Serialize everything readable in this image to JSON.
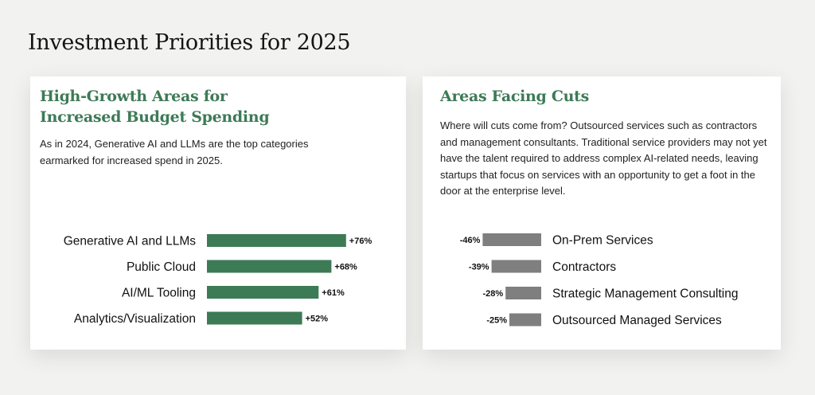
{
  "page": {
    "title": "Investment Priorities for 2025"
  },
  "left_card": {
    "title_line1": "High-Growth Areas for",
    "title_line2": "Increased Budget Spending",
    "description": "As in 2024, Generative AI and LLMs are the top categories earmarked for increased spend in 2025."
  },
  "right_card": {
    "title": "Areas Facing Cuts",
    "description": "Where will cuts come from? Outsourced services such as contractors and management consultants. Traditional service providers may not yet have the talent required to address complex AI-related needs, leaving startups that focus on services with an opportunity to get a foot in the door at the enterprise level."
  },
  "colors": {
    "increase_bar": "#3d7a56",
    "decrease_bar": "#7f7f7f",
    "title_green": "#3d7a56"
  },
  "chart_data": [
    {
      "type": "bar",
      "orientation": "horizontal",
      "categories": [
        "Generative AI and LLMs",
        "Public Cloud",
        "AI/ML Tooling",
        "Analytics/Visualization"
      ],
      "values": [
        76,
        68,
        61,
        52
      ],
      "value_labels": [
        "+76%",
        "+68%",
        "+61%",
        "+52%"
      ],
      "unit": "%",
      "grid": false
    },
    {
      "type": "bar",
      "orientation": "horizontal",
      "categories": [
        "On-Prem Services",
        "Contractors",
        "Strategic Management Consulting",
        "Outsourced Managed Services"
      ],
      "values": [
        -46,
        -39,
        -28,
        -25
      ],
      "value_labels": [
        "-46%",
        "-39%",
        "-28%",
        "-25%"
      ],
      "unit": "%",
      "grid": false
    }
  ]
}
